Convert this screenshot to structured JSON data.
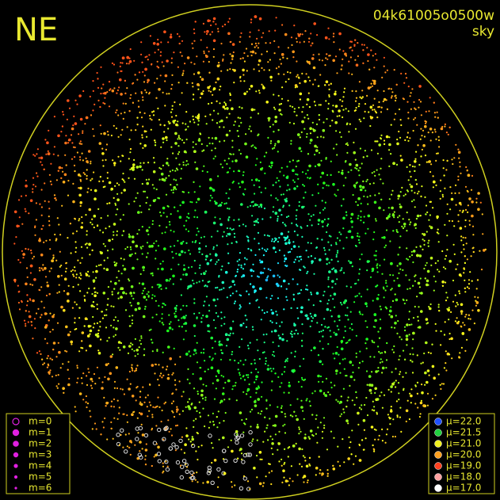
{
  "header": {
    "label": "NE",
    "id": "04k61005o0500w",
    "subtitle": "sky"
  },
  "magnitude_legend": {
    "items": [
      "m=0",
      "m=1",
      "m=2",
      "m=3",
      "m=4",
      "m=5",
      "m=6"
    ],
    "color": "#e020e0"
  },
  "brightness_legend": {
    "items": [
      {
        "label": "μ=22.0",
        "color": "#2050ff"
      },
      {
        "label": "μ=21.5",
        "color": "#20d040"
      },
      {
        "label": "μ=21.0",
        "color": "#f0f020"
      },
      {
        "label": "μ=20.0",
        "color": "#ffa020"
      },
      {
        "label": "μ=19.0",
        "color": "#ff4020"
      },
      {
        "label": "μ=18.0",
        "color": "#ffa0a0"
      },
      {
        "label": "μ=17.0",
        "color": "#ffffff"
      }
    ]
  }
}
